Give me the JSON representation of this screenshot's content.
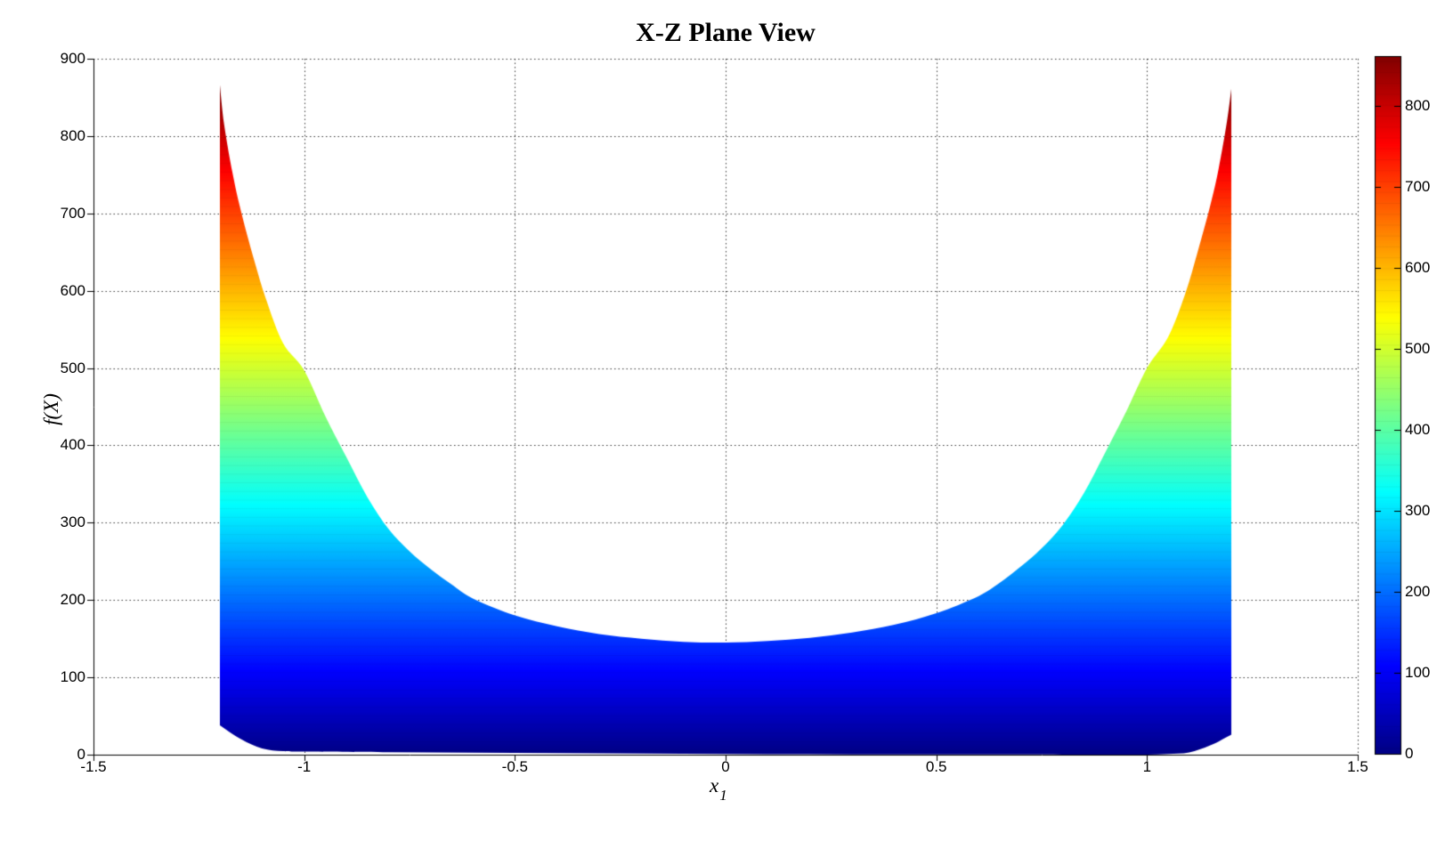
{
  "title": "X-Z Plane View",
  "chart_data": {
    "type": "area",
    "title": "X-Z Plane View",
    "xlabel": "x",
    "xlabel_subscript": "1",
    "ylabel": "f(X)",
    "xlim": [
      -1.5,
      1.5
    ],
    "ylim": [
      0,
      900
    ],
    "grid": true,
    "grid_style": "dotted",
    "x_ticks": [
      "-1.5",
      "-1",
      "-0.5",
      "0",
      "0.5",
      "1",
      "1.5"
    ],
    "x_tick_values": [
      -1.5,
      -1,
      -0.5,
      0,
      0.5,
      1,
      1.5
    ],
    "y_ticks": [
      "0",
      "100",
      "200",
      "300",
      "400",
      "500",
      "600",
      "700",
      "800",
      "900"
    ],
    "y_tick_values": [
      0,
      100,
      200,
      300,
      400,
      500,
      600,
      700,
      800,
      900
    ],
    "colormap": "jet",
    "colormap_stops": [
      [
        0.0,
        "#000084"
      ],
      [
        0.125,
        "#0000ff"
      ],
      [
        0.375,
        "#00ffff"
      ],
      [
        0.625,
        "#ffff00"
      ],
      [
        0.875,
        "#ff0000"
      ],
      [
        1.0,
        "#800000"
      ]
    ],
    "color_vmin": 0,
    "color_vmax": 862,
    "envelope": {
      "comment": "filled region between bottom(x) and top(x), colored by f value",
      "x_range": [
        -1.2,
        1.2
      ],
      "top_x": [
        -1.2,
        -1.19,
        -1.17,
        -1.15,
        -1.12,
        -1.09,
        -1.05,
        -1.0,
        -0.95,
        -0.9,
        -0.85,
        -0.8,
        -0.75,
        -0.7,
        -0.65,
        -0.6,
        -0.5,
        -0.4,
        -0.3,
        -0.2,
        -0.1,
        0.0,
        0.1,
        0.2,
        0.3,
        0.4,
        0.5,
        0.6,
        0.65,
        0.7,
        0.75,
        0.8,
        0.85,
        0.9,
        0.95,
        1.0,
        1.05,
        1.09,
        1.12,
        1.15,
        1.17,
        1.19,
        1.2
      ],
      "top_f": [
        866,
        815,
        752,
        703,
        642,
        588,
        532,
        497,
        438,
        385,
        333,
        292,
        263,
        240,
        220,
        202,
        180,
        166,
        156,
        150,
        146,
        145,
        147,
        151,
        158,
        168,
        183,
        205,
        222,
        243,
        267,
        297,
        338,
        390,
        443,
        500,
        540,
        595,
        650,
        710,
        758,
        820,
        861
      ],
      "bottom_x": [
        -1.2,
        -1.15,
        -1.1,
        -1.05,
        -1.0,
        -0.8,
        -0.6,
        -0.4,
        -0.2,
        0.0,
        0.2,
        0.4,
        0.6,
        0.8,
        0.95,
        1.0,
        1.05,
        1.1,
        1.15,
        1.2
      ],
      "bottom_f": [
        38,
        20,
        8,
        4.5,
        4.0,
        3.2,
        2.6,
        2.0,
        1.4,
        1.0,
        0.64,
        0.36,
        0.16,
        0.04,
        0.01,
        0.05,
        1.0,
        3.0,
        12,
        26
      ]
    },
    "colorbar": {
      "ticks": [
        "0",
        "100",
        "200",
        "300",
        "400",
        "500",
        "600",
        "700",
        "800"
      ],
      "tick_values": [
        0,
        100,
        200,
        300,
        400,
        500,
        600,
        700,
        800
      ],
      "vmin": 0,
      "vmax": 862,
      "location": "right"
    },
    "legend": null
  }
}
